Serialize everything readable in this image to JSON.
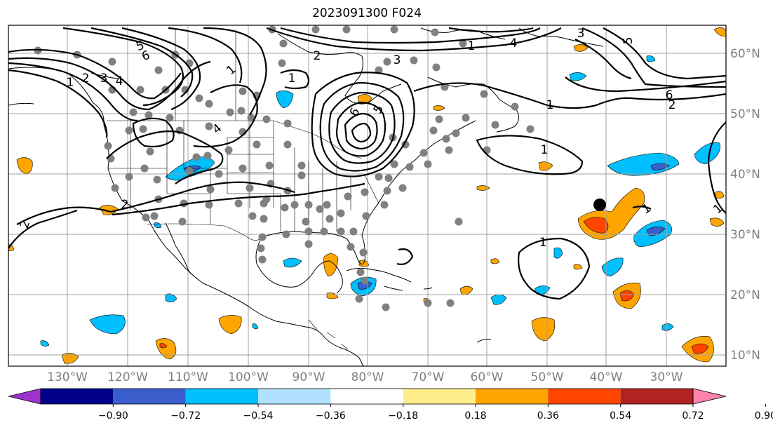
{
  "title": "2023091300 F024",
  "longitude_labels": [
    "130°W",
    "120°W",
    "110°W",
    "100°W",
    "90°W",
    "80°W",
    "70°W",
    "60°W",
    "50°W",
    "40°W",
    "30°W"
  ],
  "latitude_labels": [
    "60°N",
    "50°N",
    "40°N",
    "30°N",
    "20°N",
    "10°N"
  ],
  "colorbar": {
    "colors": [
      "#9a32cd",
      "#00008b",
      "#3a5fcd",
      "#00bfff",
      "#b0e2ff",
      "#ffffff",
      "#ffec8b",
      "#ffa500",
      "#ff4500",
      "#b22222",
      "#ff82ab"
    ],
    "tick_labels": [
      "−0.90",
      "−0.72",
      "−0.54",
      "−0.36",
      "−0.18",
      "0.18",
      "0.36",
      "0.54",
      "0.72",
      "0.90"
    ]
  },
  "contour_labels": [
    "5",
    "6",
    "2",
    "4",
    "3",
    "1",
    "2",
    "4",
    "5",
    "6",
    "3",
    "1",
    "1",
    "1",
    "1",
    "2",
    "2",
    "4",
    "5",
    "6",
    "3",
    "1",
    "2",
    "1",
    "1",
    "1"
  ],
  "colors": {
    "frame": "#000000",
    "grid": "#a0a0a0",
    "coast": "#000000",
    "station": "#808080"
  },
  "marker": {
    "name": "black-dot"
  }
}
